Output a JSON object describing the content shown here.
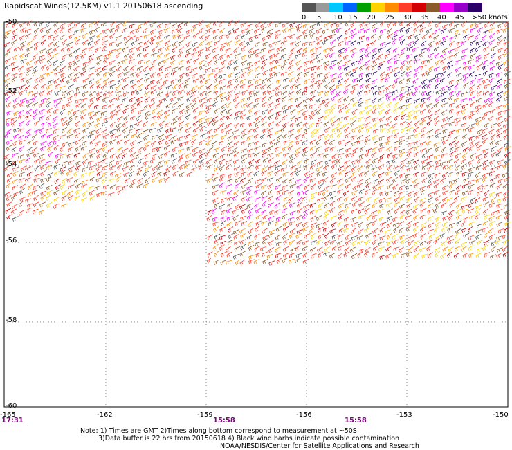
{
  "title": "Rapidscat Winds(12.5KM) v1.1 20150618 ascending",
  "legend": {
    "labels": [
      "0",
      "5",
      "10",
      "15",
      "20",
      "25",
      "30",
      "35",
      "40",
      "45",
      ">50 knots"
    ],
    "colors": [
      "#555555",
      "#9a9a9a",
      "#00c8ff",
      "#0064ff",
      "#00a000",
      "#ffd200",
      "#ff8c00",
      "#ff3c28",
      "#d20000",
      "#8b5a2b",
      "#ff00ff",
      "#9600c8",
      "#2a0066"
    ]
  },
  "axes": {
    "lon_ticks": [
      "-165",
      "-162",
      "-159",
      "-156",
      "-153",
      "-150"
    ],
    "lat_ticks": [
      "-50",
      "-52",
      "-54",
      "-56",
      "-58",
      "-60"
    ]
  },
  "times": [
    "17:31",
    "15:58",
    "15:58"
  ],
  "notes": {
    "line1": "Note: 1) Times are GMT 2)Times along bottom correspond to measurement at ~50S",
    "line2": "3)Data buffer is 22 hrs from 20150618 4) Black wind barbs indicate possible contamination",
    "line3": "NOAA/NESDIS/Center for Satellite Applications and Research"
  }
}
